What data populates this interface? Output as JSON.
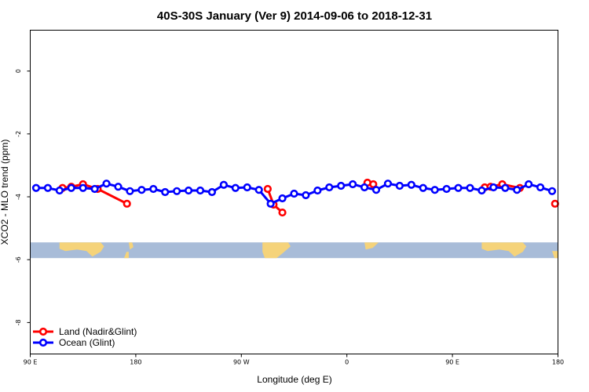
{
  "chart_data": {
    "type": "line",
    "title": "40S-30S January (Ver 9)   2014-09-06 to 2018-12-31",
    "xlabel": "Longitude (deg E)",
    "ylabel": "XCO2 - MLO trend (ppm)",
    "x_range_deg_east": [
      90,
      540
    ],
    "ylim": [
      -9,
      1.3
    ],
    "x_ticks": [
      {
        "value": 90,
        "label": "90 E"
      },
      {
        "value": 180,
        "label": "180"
      },
      {
        "value": 270,
        "label": "90 W"
      },
      {
        "value": 360,
        "label": "0"
      },
      {
        "value": 450,
        "label": "90 E"
      },
      {
        "value": 540,
        "label": "180"
      }
    ],
    "y_ticks": [
      {
        "value": 0,
        "label": "0"
      },
      {
        "value": -2,
        "label": "-2"
      },
      {
        "value": -4,
        "label": "-4"
      },
      {
        "value": -6,
        "label": "-6"
      },
      {
        "value": -8,
        "label": "-8"
      }
    ],
    "grid": false,
    "legend_position": "bottom-left",
    "map_strip": {
      "y_top": -5.45,
      "y_bottom": -5.95,
      "ocean_color": "#a8bcd8",
      "land_color": "#f5d37a"
    },
    "series": [
      {
        "name": "Land (Nadir&Glint)",
        "color": "#ff0000",
        "segments": [
          [
            [
              117.5,
              -3.72
            ],
            [
              125,
              -3.68
            ],
            [
              135,
              -3.6
            ],
            [
              147.5,
              -3.75
            ],
            [
              172.5,
              -4.22
            ]
          ],
          [
            [
              292.5,
              -3.75
            ],
            [
              297.5,
              -4.25
            ],
            [
              305,
              -4.5
            ]
          ],
          [
            [
              377.5,
              -3.55
            ],
            [
              382.5,
              -3.6
            ]
          ],
          [
            [
              477.5,
              -3.7
            ],
            [
              482.5,
              -3.68
            ],
            [
              492.5,
              -3.6
            ],
            [
              507.5,
              -3.72
            ]
          ],
          [
            [
              537.5,
              -4.22
            ]
          ]
        ]
      },
      {
        "name": "Ocean (Glint)",
        "color": "#0000ff",
        "x": [
          95,
          105,
          115,
          125,
          135,
          145,
          155,
          165,
          175,
          185,
          195,
          205,
          215,
          225,
          235,
          245,
          255,
          265,
          275,
          285,
          295,
          305,
          315,
          325,
          335,
          345,
          355,
          365,
          375,
          385,
          395,
          405,
          415,
          425,
          435,
          445,
          455,
          465,
          475,
          485,
          495,
          505,
          515,
          525,
          535
        ],
        "y": [
          -3.72,
          -3.72,
          -3.8,
          -3.72,
          -3.72,
          -3.75,
          -3.58,
          -3.68,
          -3.82,
          -3.78,
          -3.75,
          -3.85,
          -3.82,
          -3.8,
          -3.8,
          -3.85,
          -3.62,
          -3.72,
          -3.7,
          -3.78,
          -4.22,
          -4.05,
          -3.9,
          -3.95,
          -3.8,
          -3.7,
          -3.65,
          -3.6,
          -3.7,
          -3.78,
          -3.58,
          -3.65,
          -3.62,
          -3.72,
          -3.78,
          -3.75,
          -3.72,
          -3.72,
          -3.8,
          -3.7,
          -3.72,
          -3.78,
          -3.6,
          -3.7,
          -3.82
        ]
      }
    ]
  }
}
